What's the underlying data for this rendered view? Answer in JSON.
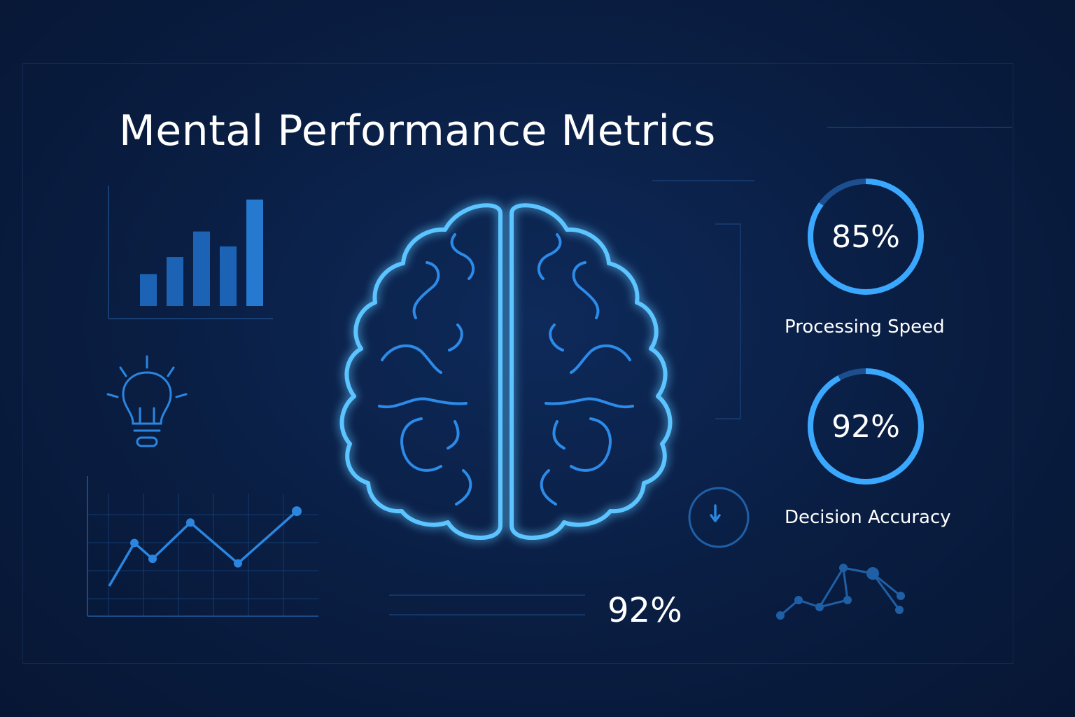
{
  "header": {
    "title": "Mental Performance Metrics"
  },
  "bar_chart": {
    "values": [
      30,
      46,
      70,
      56,
      100
    ]
  },
  "line_chart": {
    "values": [
      0,
      38,
      24,
      56,
      20,
      66
    ]
  },
  "scatter_network": {
    "values": [
      0,
      22,
      12,
      68,
      22,
      60,
      8,
      28
    ]
  },
  "gauges": [
    {
      "value_label": "85%",
      "value": 0.85,
      "label": "Processing Speed"
    },
    {
      "value_label": "92%",
      "value": 0.92,
      "label": "Decision Accuracy"
    }
  ],
  "bottom_stat": {
    "value_label": "92%"
  },
  "icons": [
    "bar-chart-icon",
    "lightbulb-icon",
    "line-chart-icon",
    "brain-icon",
    "timer-icon",
    "network-chart-icon"
  ],
  "colors": {
    "background": "#0a1f45",
    "accent": "#3aa8ff",
    "brain_outline": "#5cc4ff",
    "muted": "#1f5fa6"
  }
}
